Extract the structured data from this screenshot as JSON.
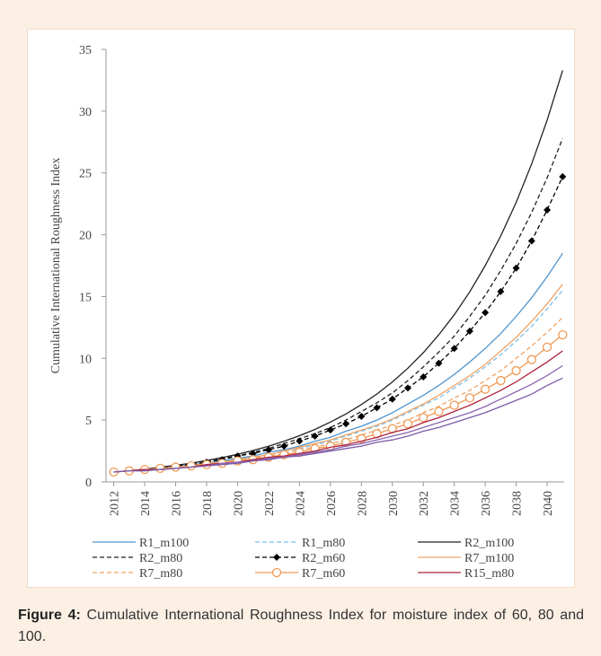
{
  "chart_data": {
    "type": "line",
    "y_label": "Cumulative International Roughness Index",
    "x": [
      2012,
      2013,
      2014,
      2015,
      2016,
      2017,
      2018,
      2019,
      2020,
      2021,
      2022,
      2023,
      2024,
      2025,
      2026,
      2027,
      2028,
      2029,
      2030,
      2031,
      2032,
      2033,
      2034,
      2035,
      2036,
      2037,
      2038,
      2039,
      2040,
      2041
    ],
    "xlim": [
      2011.5,
      2041.1
    ],
    "xticks": [
      2012,
      2014,
      2016,
      2018,
      2020,
      2022,
      2024,
      2026,
      2028,
      2030,
      2032,
      2034,
      2036,
      2038,
      2040
    ],
    "ylim": [
      0,
      35
    ],
    "yticks": [
      0,
      5,
      10,
      15,
      20,
      25,
      30,
      35
    ],
    "series": [
      {
        "name": "R1_m100",
        "color": "#4f94cd",
        "dash": "solid",
        "marker": "none",
        "values": [
          0.8,
          0.9,
          1.0,
          1.1,
          1.2,
          1.4,
          1.5,
          1.7,
          1.9,
          2.1,
          2.4,
          2.6,
          2.9,
          3.3,
          3.6,
          4.1,
          4.5,
          5.0,
          5.6,
          6.3,
          7.0,
          7.8,
          8.7,
          9.7,
          10.8,
          12.0,
          13.4,
          14.9,
          16.6,
          18.5
        ]
      },
      {
        "name": "R1_m80",
        "color": "#7fbde6",
        "dash": "dashed",
        "marker": "none",
        "values": [
          0.8,
          0.9,
          1.0,
          1.1,
          1.2,
          1.3,
          1.5,
          1.6,
          1.8,
          2.0,
          2.2,
          2.5,
          2.7,
          3.0,
          3.3,
          3.7,
          4.1,
          4.5,
          5.0,
          5.6,
          6.2,
          6.8,
          7.6,
          8.4,
          9.3,
          10.3,
          11.4,
          12.6,
          14.0,
          15.5
        ]
      },
      {
        "name": "R2_m100",
        "color": "#222222",
        "dash": "solid",
        "marker": "none",
        "values": [
          0.8,
          0.91,
          1.03,
          1.18,
          1.34,
          1.52,
          1.73,
          1.97,
          2.24,
          2.54,
          2.89,
          3.29,
          3.74,
          4.25,
          4.84,
          5.5,
          6.26,
          7.11,
          8.09,
          9.2,
          10.46,
          11.9,
          13.53,
          15.38,
          17.5,
          19.9,
          22.62,
          25.73,
          29.26,
          33.3
        ]
      },
      {
        "name": "R2_m80",
        "color": "#222222",
        "dash": "dashed",
        "marker": "none",
        "values": [
          0.8,
          0.9,
          1.0,
          1.2,
          1.3,
          1.5,
          1.7,
          1.9,
          2.1,
          2.4,
          2.7,
          3.1,
          3.5,
          3.9,
          4.4,
          5.0,
          5.7,
          6.4,
          7.2,
          8.2,
          9.3,
          10.5,
          11.8,
          13.4,
          15.1,
          17.1,
          19.3,
          21.8,
          24.6,
          27.8
        ]
      },
      {
        "name": "R2_m60",
        "color": "#000000",
        "dash": "dashed",
        "marker": "diamond",
        "values": [
          0.8,
          0.9,
          1.0,
          1.1,
          1.3,
          1.4,
          1.6,
          1.8,
          2.1,
          2.3,
          2.6,
          2.9,
          3.3,
          3.7,
          4.2,
          4.7,
          5.3,
          6.0,
          6.7,
          7.6,
          8.5,
          9.6,
          10.8,
          12.2,
          13.7,
          15.4,
          17.3,
          19.5,
          22.0,
          24.7
        ]
      },
      {
        "name": "R7_m100",
        "color": "#f0a366",
        "dash": "solid",
        "marker": "none",
        "values": [
          0.8,
          0.9,
          1.0,
          1.1,
          1.2,
          1.3,
          1.5,
          1.6,
          1.8,
          2.0,
          2.2,
          2.5,
          2.8,
          3.1,
          3.4,
          3.8,
          4.2,
          4.6,
          5.1,
          5.7,
          6.3,
          7.0,
          7.8,
          8.6,
          9.5,
          10.6,
          11.7,
          13.0,
          14.4,
          16.0
        ]
      },
      {
        "name": "R7_m80",
        "color": "#f0a366",
        "dash": "dashed",
        "marker": "none",
        "values": [
          0.8,
          0.9,
          1.0,
          1.1,
          1.2,
          1.3,
          1.4,
          1.6,
          1.7,
          1.9,
          2.1,
          2.3,
          2.6,
          2.8,
          3.1,
          3.4,
          3.8,
          4.2,
          4.6,
          5.0,
          5.6,
          6.1,
          6.8,
          7.4,
          8.2,
          9.0,
          10.0,
          11.0,
          12.1,
          13.3
        ]
      },
      {
        "name": "R7_m60",
        "color": "#ee9a55",
        "dash": "solid",
        "marker": "circle",
        "values": [
          0.8,
          0.9,
          1.0,
          1.1,
          1.2,
          1.3,
          1.4,
          1.5,
          1.7,
          1.8,
          2.0,
          2.2,
          2.4,
          2.7,
          2.9,
          3.2,
          3.5,
          3.9,
          4.3,
          4.7,
          5.2,
          5.7,
          6.2,
          6.8,
          7.5,
          8.2,
          9.0,
          9.9,
          10.9,
          11.9
        ]
      },
      {
        "name": "R15_m80",
        "color": "#b0203c",
        "dash": "solid",
        "marker": "none",
        "values": [
          0.8,
          0.9,
          1.0,
          1.0,
          1.1,
          1.2,
          1.4,
          1.5,
          1.6,
          1.8,
          2.0,
          2.1,
          2.3,
          2.5,
          2.8,
          3.0,
          3.3,
          3.6,
          4.0,
          4.3,
          4.8,
          5.2,
          5.7,
          6.2,
          6.8,
          7.4,
          8.1,
          8.9,
          9.7,
          10.6
        ]
      },
      {
        "name": null,
        "color": "#8a64b0",
        "dash": "solid",
        "marker": "none",
        "values": [
          0.8,
          0.9,
          0.9,
          1.0,
          1.1,
          1.2,
          1.3,
          1.5,
          1.6,
          1.7,
          1.9,
          2.0,
          2.2,
          2.4,
          2.6,
          2.9,
          3.1,
          3.4,
          3.7,
          4.0,
          4.4,
          4.8,
          5.2,
          5.6,
          6.1,
          6.7,
          7.3,
          7.9,
          8.6,
          9.4
        ]
      },
      {
        "name": null,
        "color": "#7a5aa6",
        "dash": "solid",
        "marker": "none",
        "values": [
          0.8,
          0.9,
          0.9,
          1.0,
          1.1,
          1.2,
          1.3,
          1.4,
          1.5,
          1.7,
          1.8,
          2.0,
          2.1,
          2.3,
          2.5,
          2.7,
          2.9,
          3.2,
          3.4,
          3.7,
          4.1,
          4.4,
          4.8,
          5.2,
          5.6,
          6.1,
          6.6,
          7.1,
          7.8,
          8.4
        ]
      }
    ]
  },
  "caption": {
    "label": "Figure 4:",
    "text": "Cumulative International Roughness Index for moisture index of 60, 80 and 100."
  }
}
